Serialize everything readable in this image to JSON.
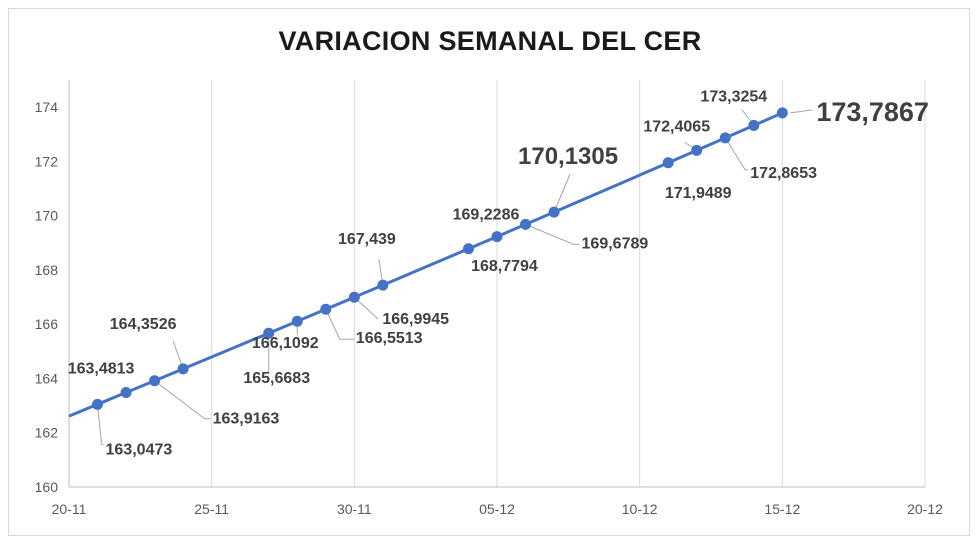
{
  "chart_data": {
    "type": "line",
    "title": "VARIACION SEMANAL DEL CER",
    "xlabel": "",
    "ylabel": "",
    "x_ticks": [
      "20-11",
      "25-11",
      "30-11",
      "05-12",
      "10-12",
      "15-12",
      "20-12"
    ],
    "y_ticks": [
      "160",
      "162",
      "164",
      "166",
      "168",
      "170",
      "172",
      "174"
    ],
    "xlim": [
      "20-11",
      "20-12"
    ],
    "ylim": [
      160,
      175
    ],
    "grid": "vertical",
    "legend": "none",
    "line_color": "#4472c4",
    "points": [
      {
        "date": "21-11",
        "value": 163.0473,
        "label": "163,0473"
      },
      {
        "date": "22-11",
        "value": 163.4813,
        "label": "163,4813"
      },
      {
        "date": "23-11",
        "value": 163.9163,
        "label": "163,9163"
      },
      {
        "date": "24-11",
        "value": 164.3526,
        "label": "164,3526"
      },
      {
        "date": "27-11",
        "value": 165.6683,
        "label": "165,6683"
      },
      {
        "date": "28-11",
        "value": 166.1092,
        "label": "166,1092"
      },
      {
        "date": "29-11",
        "value": 166.5513,
        "label": "166,5513"
      },
      {
        "date": "30-11",
        "value": 166.9945,
        "label": "166,9945"
      },
      {
        "date": "01-12",
        "value": 167.439,
        "label": "167,439"
      },
      {
        "date": "04-12",
        "value": 168.7794,
        "label": "168,7794"
      },
      {
        "date": "05-12",
        "value": 169.2286,
        "label": "169,2286"
      },
      {
        "date": "06-12",
        "value": 169.6789,
        "label": "169,6789"
      },
      {
        "date": "07-12",
        "value": 170.1305,
        "label": "170,1305"
      },
      {
        "date": "11-12",
        "value": 171.9489,
        "label": "171,9489"
      },
      {
        "date": "12-12",
        "value": 172.4065,
        "label": "172,4065"
      },
      {
        "date": "13-12",
        "value": 172.8653,
        "label": "172,8653"
      },
      {
        "date": "14-12",
        "value": 173.3254,
        "label": "173,3254"
      },
      {
        "date": "15-12",
        "value": 173.7867,
        "label": "173,7867"
      }
    ]
  }
}
